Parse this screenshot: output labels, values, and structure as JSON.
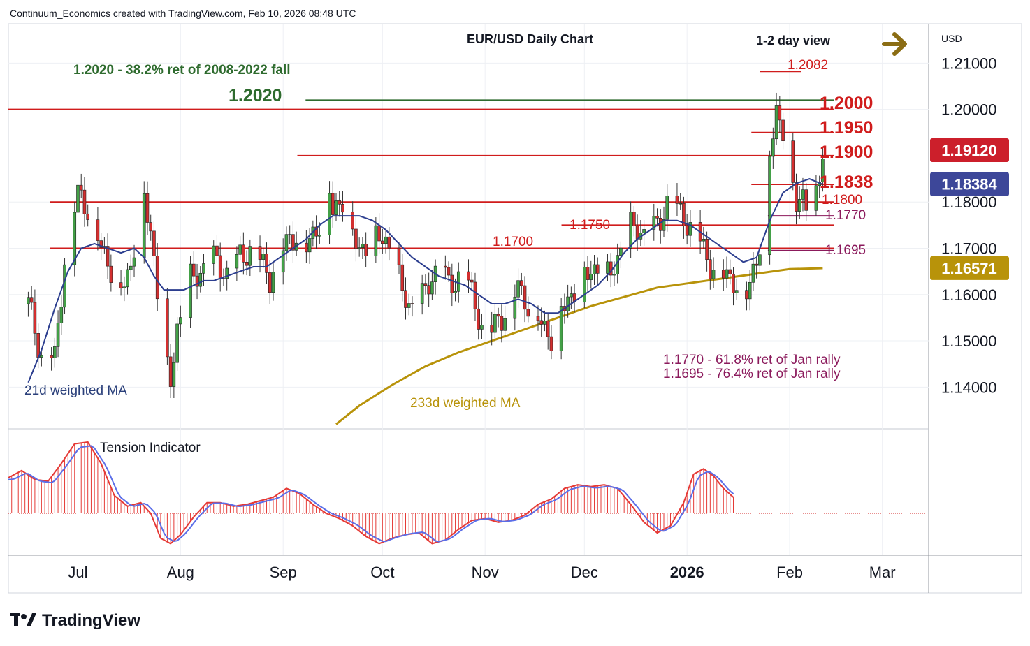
{
  "header": {
    "credit": "Continuum_Economics created with TradingView.com, Feb 10, 2026 08:48 UTC"
  },
  "brand": {
    "name": "TradingView"
  },
  "chart_data": {
    "type": "candlestick",
    "title": "EUR/USD Daily Chart",
    "subtitle": "1-2 day view",
    "currency": "USD",
    "view_direction": "bullish (right arrow)",
    "ylim": [
      1.131,
      1.2185
    ],
    "y_ticks": [
      "1.21000",
      "1.20000",
      "1.18000",
      "1.17000",
      "1.16000",
      "1.15000",
      "1.14000"
    ],
    "y_tick_values": [
      1.21,
      1.2,
      1.18,
      1.17,
      1.16,
      1.15,
      1.14
    ],
    "x_labels": [
      "Jul",
      "Aug",
      "Sep",
      "Oct",
      "Nov",
      "Dec",
      "2026",
      "Feb",
      "Mar"
    ],
    "x_label_days": [
      15,
      46,
      77,
      107,
      138,
      168,
      199,
      230,
      258
    ],
    "x_range_days": [
      -6,
      272
    ],
    "price_badges": [
      {
        "label": "1.19120",
        "value": 1.1912,
        "color": "#cc1f2b"
      },
      {
        "label": "1.18384",
        "value": 1.18384,
        "color": "#3d4799"
      },
      {
        "label": "1.16571",
        "value": 1.16571,
        "color": "#b8930a"
      }
    ],
    "levels": [
      {
        "label": "1.2020",
        "value": 1.202,
        "color": "#2e6b2e",
        "kind": "retracement"
      },
      {
        "label": "1.2000",
        "value": 1.2,
        "color": "#d01c1c",
        "kind": "resistance"
      },
      {
        "label": "1.1950",
        "value": 1.195,
        "color": "#d01c1c",
        "kind": "resistance"
      },
      {
        "label": "1.1900",
        "value": 1.19,
        "color": "#d01c1c",
        "kind": "resistance"
      },
      {
        "label": "1.1838",
        "value": 1.1838,
        "color": "#d01c1c",
        "kind": "support"
      },
      {
        "label": "1.1800",
        "value": 1.18,
        "color": "#d01c1c",
        "kind": "support"
      },
      {
        "label": "1.1770",
        "value": 1.177,
        "color": "#8b1a5c",
        "kind": "support"
      },
      {
        "label": "1.1750",
        "value": 1.175,
        "color": "#d01c1c",
        "kind": "support"
      },
      {
        "label": "1.1700",
        "value": 1.17,
        "color": "#d01c1c",
        "kind": "support"
      },
      {
        "label": "1.1695",
        "value": 1.1695,
        "color": "#8b1a5c",
        "kind": "support"
      },
      {
        "label": "1.2082",
        "value": 1.2082,
        "color": "#d01c1c",
        "kind": "high"
      }
    ],
    "annotations": {
      "fib_2008": "1.2020 - 38.2% ret of 2008-2022 fall",
      "fib_jan_618": "1.1770 - 61.8% ret of Jan rally",
      "fib_jan_764": "1.1695 - 76.4% ret of Jan rally",
      "ma21": "21d weighted MA",
      "ma233": "233d weighted MA",
      "tension": "Tension Indicator"
    },
    "close_path": [
      [
        0,
        1.158
      ],
      [
        4,
        1.147
      ],
      [
        8,
        1.146
      ],
      [
        11,
        1.168
      ],
      [
        15,
        1.182
      ],
      [
        18,
        1.179
      ],
      [
        22,
        1.17
      ],
      [
        25,
        1.166
      ],
      [
        28,
        1.161
      ],
      [
        31,
        1.166
      ],
      [
        33,
        1.176
      ],
      [
        35,
        1.18
      ],
      [
        37,
        1.174
      ],
      [
        39,
        1.161
      ],
      [
        41,
        1.146
      ],
      [
        43,
        1.141
      ],
      [
        45,
        1.153
      ],
      [
        47,
        1.158
      ],
      [
        49,
        1.163
      ],
      [
        52,
        1.165
      ],
      [
        55,
        1.168
      ],
      [
        58,
        1.166
      ],
      [
        61,
        1.164
      ],
      [
        64,
        1.168
      ],
      [
        67,
        1.17
      ],
      [
        70,
        1.167
      ],
      [
        73,
        1.164
      ],
      [
        76,
        1.169
      ],
      [
        79,
        1.172
      ],
      [
        82,
        1.174
      ],
      [
        84,
        1.17
      ],
      [
        86,
        1.173
      ],
      [
        88,
        1.176
      ],
      [
        90,
        1.186
      ],
      [
        92,
        1.178
      ],
      [
        94,
        1.18
      ],
      [
        96,
        1.182
      ],
      [
        98,
        1.173
      ],
      [
        100,
        1.17
      ],
      [
        103,
        1.171
      ],
      [
        106,
        1.173
      ],
      [
        109,
        1.171
      ],
      [
        112,
        1.163
      ],
      [
        115,
        1.158
      ],
      [
        118,
        1.157
      ],
      [
        121,
        1.163
      ],
      [
        124,
        1.166
      ],
      [
        127,
        1.162
      ],
      [
        130,
        1.164
      ],
      [
        133,
        1.162
      ],
      [
        136,
        1.156
      ],
      [
        138,
        1.151
      ],
      [
        140,
        1.152
      ],
      [
        142,
        1.155
      ],
      [
        145,
        1.157
      ],
      [
        148,
        1.162
      ],
      [
        151,
        1.158
      ],
      [
        154,
        1.155
      ],
      [
        156,
        1.153
      ],
      [
        158,
        1.151
      ],
      [
        160,
        1.156
      ],
      [
        163,
        1.159
      ],
      [
        166,
        1.162
      ],
      [
        169,
        1.165
      ],
      [
        172,
        1.166
      ],
      [
        175,
        1.164
      ],
      [
        178,
        1.168
      ],
      [
        181,
        1.174
      ],
      [
        184,
        1.175
      ],
      [
        187,
        1.172
      ],
      [
        190,
        1.175
      ],
      [
        193,
        1.18
      ],
      [
        196,
        1.178
      ],
      [
        199,
        1.176
      ],
      [
        202,
        1.173
      ],
      [
        205,
        1.168
      ],
      [
        208,
        1.165
      ],
      [
        211,
        1.164
      ],
      [
        214,
        1.163
      ],
      [
        217,
        1.16
      ],
      [
        220,
        1.168
      ],
      [
        222,
        1.175
      ],
      [
        224,
        1.19
      ],
      [
        226,
        1.2
      ],
      [
        228,
        1.196
      ],
      [
        230,
        1.186
      ],
      [
        232,
        1.18
      ],
      [
        234,
        1.182
      ],
      [
        236,
        1.178
      ],
      [
        238,
        1.181
      ],
      [
        240,
        1.1912
      ]
    ],
    "ma21_path": [
      [
        0,
        1.141
      ],
      [
        4,
        1.148
      ],
      [
        8,
        1.157
      ],
      [
        12,
        1.165
      ],
      [
        16,
        1.17
      ],
      [
        20,
        1.171
      ],
      [
        24,
        1.17
      ],
      [
        28,
        1.169
      ],
      [
        32,
        1.17
      ],
      [
        35,
        1.168
      ],
      [
        38,
        1.164
      ],
      [
        41,
        1.161
      ],
      [
        44,
        1.161
      ],
      [
        47,
        1.161
      ],
      [
        50,
        1.162
      ],
      [
        53,
        1.163
      ],
      [
        56,
        1.163
      ],
      [
        60,
        1.164
      ],
      [
        64,
        1.165
      ],
      [
        68,
        1.166
      ],
      [
        72,
        1.166
      ],
      [
        76,
        1.168
      ],
      [
        80,
        1.17
      ],
      [
        84,
        1.172
      ],
      [
        88,
        1.175
      ],
      [
        92,
        1.177
      ],
      [
        96,
        1.177
      ],
      [
        100,
        1.177
      ],
      [
        104,
        1.176
      ],
      [
        108,
        1.174
      ],
      [
        112,
        1.171
      ],
      [
        116,
        1.168
      ],
      [
        120,
        1.166
      ],
      [
        124,
        1.164
      ],
      [
        128,
        1.163
      ],
      [
        132,
        1.162
      ],
      [
        136,
        1.16
      ],
      [
        140,
        1.158
      ],
      [
        144,
        1.158
      ],
      [
        148,
        1.159
      ],
      [
        152,
        1.158
      ],
      [
        156,
        1.156
      ],
      [
        160,
        1.156
      ],
      [
        164,
        1.158
      ],
      [
        168,
        1.16
      ],
      [
        172,
        1.162
      ],
      [
        176,
        1.165
      ],
      [
        180,
        1.169
      ],
      [
        184,
        1.172
      ],
      [
        188,
        1.174
      ],
      [
        192,
        1.176
      ],
      [
        196,
        1.176
      ],
      [
        200,
        1.175
      ],
      [
        204,
        1.173
      ],
      [
        208,
        1.171
      ],
      [
        212,
        1.169
      ],
      [
        216,
        1.167
      ],
      [
        220,
        1.168
      ],
      [
        224,
        1.176
      ],
      [
        228,
        1.182
      ],
      [
        232,
        1.184
      ],
      [
        236,
        1.185
      ],
      [
        240,
        1.1838
      ]
    ],
    "ma233_path": [
      [
        93,
        1.132
      ],
      [
        100,
        1.136
      ],
      [
        110,
        1.1405
      ],
      [
        120,
        1.1445
      ],
      [
        130,
        1.1475
      ],
      [
        140,
        1.15
      ],
      [
        150,
        1.1525
      ],
      [
        160,
        1.155
      ],
      [
        170,
        1.1575
      ],
      [
        180,
        1.1595
      ],
      [
        190,
        1.1615
      ],
      [
        200,
        1.1625
      ],
      [
        210,
        1.1635
      ],
      [
        220,
        1.1645
      ],
      [
        230,
        1.1655
      ],
      [
        240,
        1.1657
      ]
    ],
    "tension_path": [
      [
        -6,
        1.0
      ],
      [
        -2,
        1.2
      ],
      [
        2,
        0.95
      ],
      [
        6,
        0.9
      ],
      [
        10,
        1.4
      ],
      [
        14,
        1.95
      ],
      [
        18,
        2.0
      ],
      [
        22,
        1.4
      ],
      [
        26,
        0.5
      ],
      [
        30,
        0.2
      ],
      [
        34,
        0.3
      ],
      [
        37,
        0.0
      ],
      [
        40,
        -0.7
      ],
      [
        43,
        -0.85
      ],
      [
        46,
        -0.6
      ],
      [
        50,
        -0.1
      ],
      [
        54,
        0.3
      ],
      [
        58,
        0.3
      ],
      [
        62,
        0.2
      ],
      [
        66,
        0.25
      ],
      [
        70,
        0.35
      ],
      [
        74,
        0.45
      ],
      [
        78,
        0.7
      ],
      [
        82,
        0.55
      ],
      [
        86,
        0.25
      ],
      [
        90,
        0.0
      ],
      [
        94,
        -0.15
      ],
      [
        98,
        -0.35
      ],
      [
        102,
        -0.65
      ],
      [
        106,
        -0.85
      ],
      [
        110,
        -0.7
      ],
      [
        114,
        -0.6
      ],
      [
        118,
        -0.55
      ],
      [
        122,
        -0.85
      ],
      [
        126,
        -0.75
      ],
      [
        130,
        -0.45
      ],
      [
        134,
        -0.2
      ],
      [
        138,
        -0.15
      ],
      [
        142,
        -0.25
      ],
      [
        146,
        -0.2
      ],
      [
        150,
        -0.05
      ],
      [
        154,
        0.25
      ],
      [
        158,
        0.4
      ],
      [
        162,
        0.7
      ],
      [
        166,
        0.8
      ],
      [
        170,
        0.75
      ],
      [
        174,
        0.8
      ],
      [
        178,
        0.7
      ],
      [
        182,
        0.25
      ],
      [
        186,
        -0.25
      ],
      [
        190,
        -0.55
      ],
      [
        194,
        -0.35
      ],
      [
        198,
        0.3
      ],
      [
        201,
        1.1
      ],
      [
        204,
        1.25
      ],
      [
        207,
        1.05
      ],
      [
        210,
        0.7
      ],
      [
        213,
        0.45
      ]
    ]
  }
}
